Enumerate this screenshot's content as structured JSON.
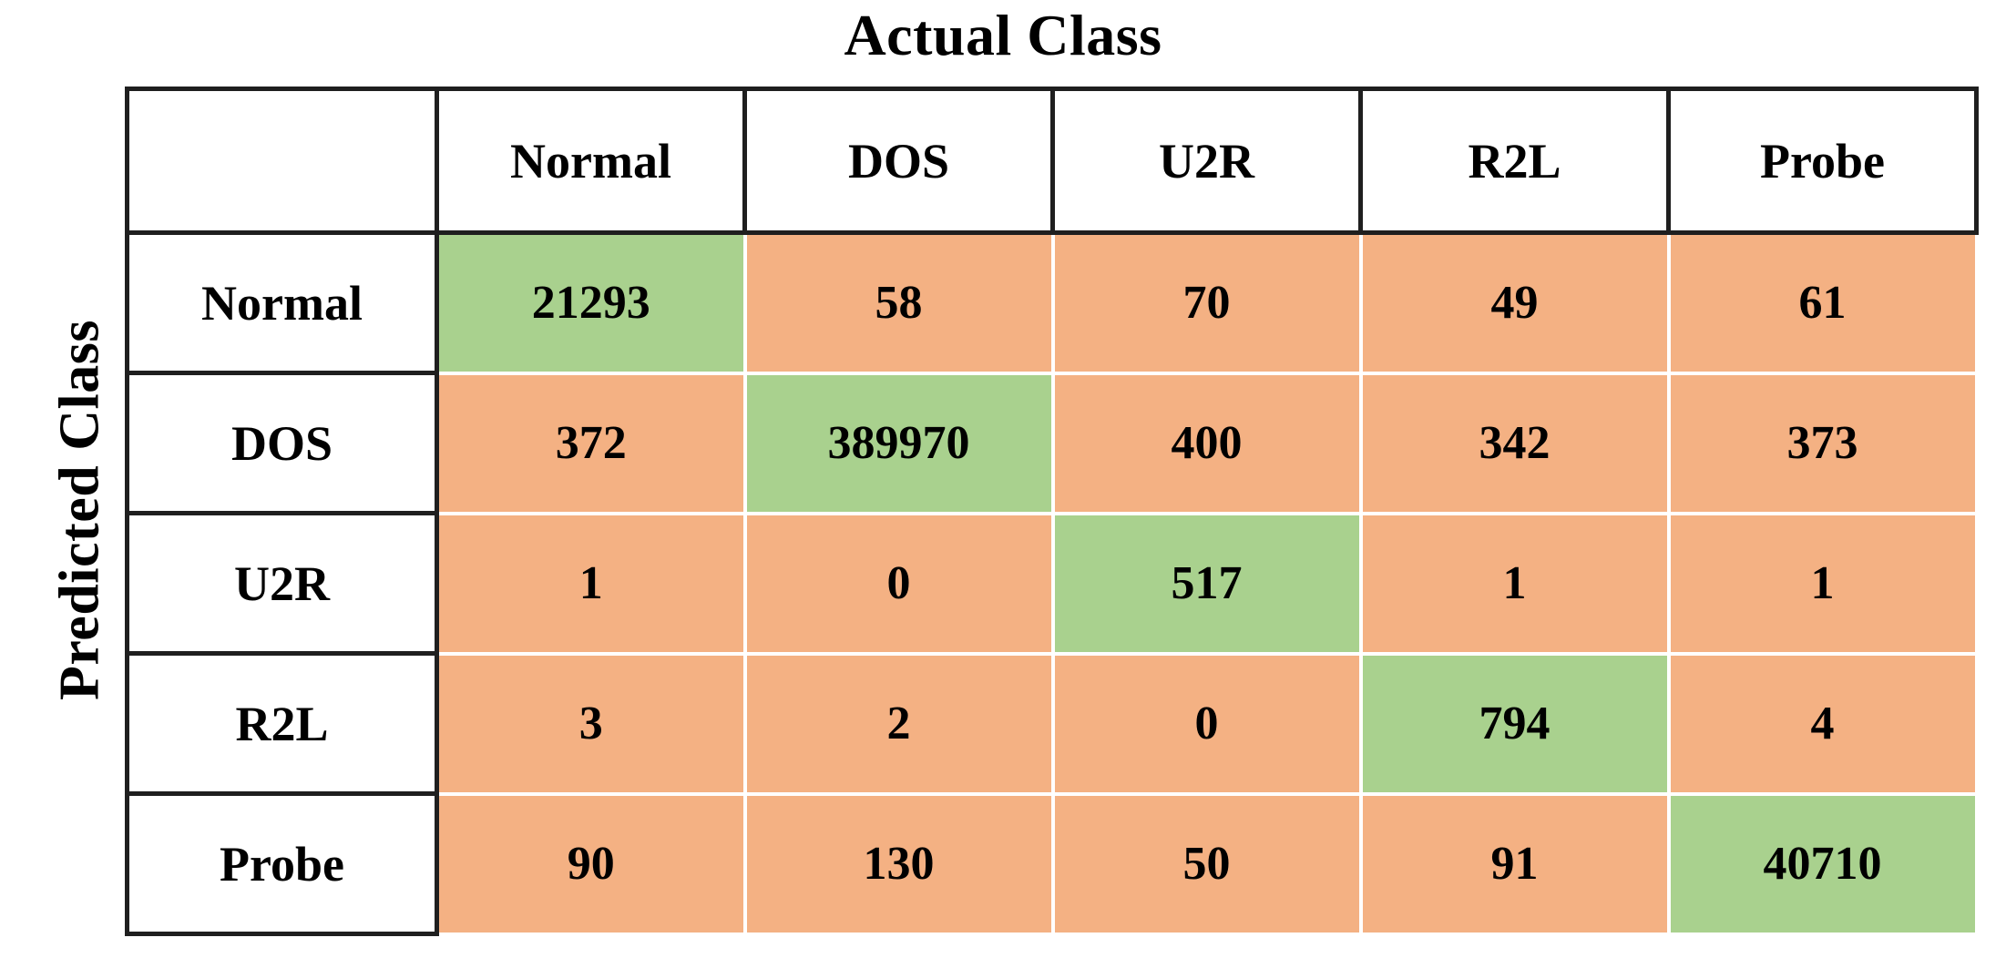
{
  "chart_data": {
    "type": "heatmap",
    "subtype": "confusion-matrix",
    "xlabel": "Actual Class",
    "ylabel": "Predicted Class",
    "x_categories": [
      "Normal",
      "DOS",
      "U2R",
      "R2L",
      "Probe"
    ],
    "y_categories": [
      "Normal",
      "DOS",
      "U2R",
      "R2L",
      "Probe"
    ],
    "matrix": [
      [
        21293,
        58,
        70,
        49,
        61
      ],
      [
        372,
        389970,
        400,
        342,
        373
      ],
      [
        1,
        0,
        517,
        1,
        1
      ],
      [
        3,
        2,
        0,
        794,
        4
      ],
      [
        90,
        130,
        50,
        91,
        40710
      ]
    ],
    "layout_hints": {
      "diagonal_highlighted": true,
      "grid": "white lines between data cells, dark borders on header cells",
      "legend": "none"
    },
    "colors": {
      "diagonal": "#a9d18e",
      "off_diagonal": "#f4b183",
      "border": "#1f1f1f",
      "text": "#000000",
      "grid": "#ffffff",
      "header_bg": "#ffffff"
    }
  }
}
